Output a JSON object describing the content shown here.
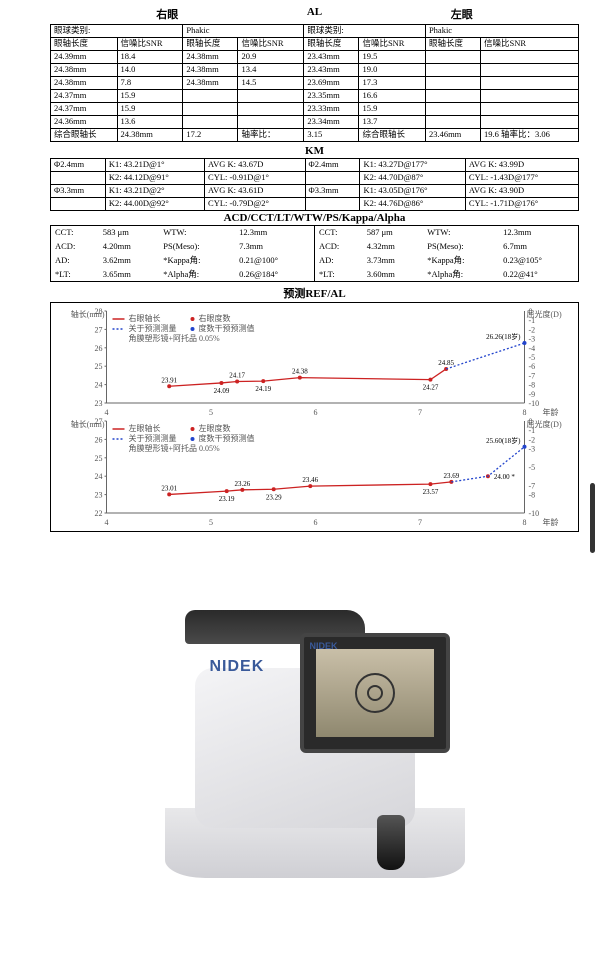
{
  "header": {
    "right_eye": "右眼",
    "al": "AL",
    "left_eye": "左眼"
  },
  "al": {
    "cols_r": [
      "眼球类别:",
      "Phakic"
    ],
    "cols_l": [
      "眼球类别:",
      "Phakic"
    ],
    "head_r": [
      "眼轴长度",
      "信噪比SNR",
      "眼轴长度",
      "信噪比SNR"
    ],
    "head_l": [
      "眼轴长度",
      "信噪比SNR",
      "眼轴长度",
      "信噪比SNR"
    ],
    "rows_r": [
      [
        "24.39mm",
        "18.4",
        "24.38mm",
        "20.9"
      ],
      [
        "24.38mm",
        "14.0",
        "24.38mm",
        "13.4"
      ],
      [
        "24.38mm",
        "7.8",
        "24.38mm",
        "14.5"
      ],
      [
        "24.37mm",
        "15.9",
        "",
        ""
      ],
      [
        "24.37mm",
        "15.9",
        "",
        ""
      ],
      [
        "24.36mm",
        "13.6",
        "",
        ""
      ]
    ],
    "rows_l": [
      [
        "23.43mm",
        "19.5",
        "",
        ""
      ],
      [
        "23.43mm",
        "19.0",
        "",
        ""
      ],
      [
        "23.69mm",
        "17.3",
        "",
        ""
      ],
      [
        "23.35mm",
        "16.6",
        "",
        ""
      ],
      [
        "23.33mm",
        "15.9",
        "",
        ""
      ],
      [
        "23.34mm",
        "13.7",
        "",
        ""
      ]
    ],
    "summary_r": [
      "综合眼轴长",
      "24.38mm",
      "17.2",
      "轴率比：",
      "3.15"
    ],
    "summary_l": [
      "综合眼轴长",
      "23.46mm",
      "19.6",
      "轴率比：",
      "3.06"
    ]
  },
  "km": {
    "title": "KM",
    "r": [
      [
        "Φ2.4mm",
        "K1: 43.21D@1°",
        "AVG K: 43.67D"
      ],
      [
        "",
        "K2: 44.12D@91°",
        "CYL: -0.91D@1°"
      ],
      [
        "Φ3.3mm",
        "K1: 43.21D@2°",
        "AVG K: 43.61D"
      ],
      [
        "",
        "K2: 44.00D@92°",
        "CYL: -0.79D@2°"
      ]
    ],
    "l": [
      [
        "Φ2.4mm",
        "K1: 43.27D@177°",
        "AVG K: 43.99D"
      ],
      [
        "",
        "K2: 44.70D@87°",
        "CYL: -1.43D@177°"
      ],
      [
        "Φ3.3mm",
        "K1: 43.05D@176°",
        "AVG K: 43.90D"
      ],
      [
        "",
        "K2: 44.76D@86°",
        "CYL: -1.71D@176°"
      ]
    ]
  },
  "acd": {
    "title": "ACD/CCT/LT/WTW/PS/Kappa/Alpha",
    "r": [
      [
        "CCT:",
        "583 μm",
        "WTW:",
        "12.3mm"
      ],
      [
        "ACD:",
        "4.20mm",
        "PS(Meso):",
        "7.3mm"
      ],
      [
        "AD:",
        "3.62mm",
        "*Kappa角:",
        "0.21@100°"
      ],
      [
        "*LT:",
        "3.65mm",
        "*Alpha角:",
        "0.26@184°"
      ]
    ],
    "l": [
      [
        "CCT:",
        "587 μm",
        "WTW:",
        "12.3mm"
      ],
      [
        "ACD:",
        "4.32mm",
        "PS(Meso):",
        "6.7mm"
      ],
      [
        "AD:",
        "3.73mm",
        "*Kappa角:",
        "0.23@105°"
      ],
      [
        "*LT:",
        "3.60mm",
        "*Alpha角:",
        "0.22@41°"
      ]
    ]
  },
  "ref": {
    "title": "预测REF/AL",
    "legend": {
      "axis_l": "轴长(mm)",
      "axis_r": "屈光度(D)",
      "a": "左眼轴长",
      "a2": "右眼轴长",
      "b": "左眼度数",
      "b2": "右眼度数",
      "c": "关于预测测量",
      "c2": "度数干预预测值",
      "d": "角膜塑形镜+阿托品 0.05%",
      "xaxis": "年龄"
    },
    "chart1": {
      "x": [
        4,
        5,
        6,
        7,
        8
      ],
      "y_al": [
        23,
        24,
        25,
        26,
        27,
        28
      ],
      "y_d": [
        -10,
        -9,
        -8,
        -7,
        -6,
        -5,
        -4,
        -3,
        -2,
        -1,
        0
      ],
      "red_pts": [
        [
          4.6,
          23.91
        ],
        [
          5.1,
          24.09
        ],
        [
          5.25,
          24.17
        ],
        [
          5.5,
          24.19
        ],
        [
          5.85,
          24.38
        ],
        [
          7.1,
          24.27
        ],
        [
          7.25,
          24.85
        ]
      ],
      "red_lbls": [
        "23.91",
        "24.09",
        "24.17",
        "24.19",
        "24.38",
        "24.27",
        "24.85"
      ],
      "blue_last": [
        8.0,
        26.26
      ],
      "blue_lbl": "26.26(18岁)",
      "colors": {
        "red": "#cc2222",
        "blue": "#2244cc",
        "grid": "#bbbbbb"
      }
    },
    "chart2": {
      "x": [
        4,
        5,
        6,
        7,
        8
      ],
      "y_al": [
        22,
        23,
        24,
        25,
        26,
        27
      ],
      "y_d": [
        -10,
        -8,
        -7,
        -5,
        -3,
        -2,
        -1,
        0
      ],
      "red_pts": [
        [
          4.6,
          23.01
        ],
        [
          5.15,
          23.19
        ],
        [
          5.3,
          23.26
        ],
        [
          5.6,
          23.29
        ],
        [
          5.95,
          23.46
        ],
        [
          7.1,
          23.57
        ],
        [
          7.3,
          23.69
        ]
      ],
      "red_lbls": [
        "23.01",
        "23.19",
        "23.26",
        "23.29",
        "23.46",
        "23.57",
        "23.69"
      ],
      "blue_mid": [
        7.65,
        24.0
      ],
      "blue_mid_lbl": "24.00",
      "blue_last": [
        8.0,
        25.6
      ],
      "blue_lbl": "25.60(18岁)",
      "colors": {
        "red": "#cc2222",
        "blue": "#2244cc",
        "grid": "#bbbbbb"
      }
    }
  },
  "device": {
    "brand": "NIDEK"
  }
}
